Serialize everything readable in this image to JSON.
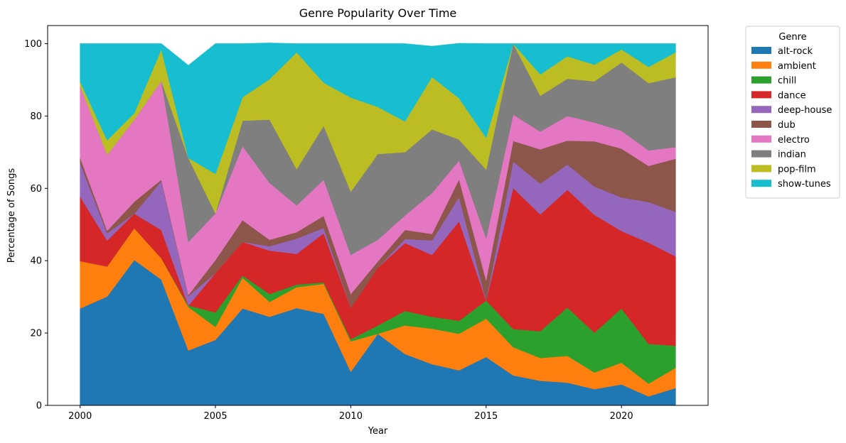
{
  "chart_data": {
    "type": "area",
    "stacked": true,
    "title": "Genre Popularity Over Time",
    "xlabel": "Year",
    "ylabel": "Percentage of Songs",
    "xlim": [
      1998.8,
      2023.2
    ],
    "ylim": [
      0,
      105
    ],
    "x_ticks": [
      2000,
      2005,
      2010,
      2015,
      2020
    ],
    "y_ticks": [
      0,
      20,
      40,
      60,
      80,
      100
    ],
    "grid": false,
    "legend": {
      "title": "Genre",
      "position": "outside-top-right"
    },
    "x": [
      2000,
      2001,
      2002,
      2003,
      2004,
      2005,
      2006,
      2007,
      2008,
      2009,
      2010,
      2011,
      2012,
      2013,
      2014,
      2015,
      2016,
      2017,
      2018,
      2019,
      2020,
      2021,
      2022
    ],
    "series": [
      {
        "name": "alt-rock",
        "color": "#1f77b4",
        "values": [
          26.8,
          30.1,
          40.2,
          34.8,
          15.2,
          18.1,
          26.8,
          24.5,
          26.9,
          25.3,
          9.3,
          19.8,
          14.2,
          11.4,
          9.7,
          13.4,
          8.3,
          6.8,
          6.3,
          4.5,
          5.8,
          2.5,
          4.8
        ]
      },
      {
        "name": "ambient",
        "color": "#ff7f0e",
        "values": [
          13.1,
          8.3,
          8.8,
          5.9,
          12.0,
          3.6,
          8.5,
          4.1,
          5.8,
          8.3,
          8.4,
          0.0,
          7.9,
          9.8,
          10.1,
          10.6,
          7.8,
          6.3,
          7.4,
          4.6,
          6.0,
          3.5,
          5.6
        ]
      },
      {
        "name": "chill",
        "color": "#2ca02c",
        "values": [
          0.0,
          0.0,
          0.0,
          0.0,
          0.4,
          4.0,
          0.6,
          2.2,
          0.7,
          0.4,
          0.6,
          2.3,
          4.0,
          3.3,
          3.6,
          5.0,
          5.0,
          7.4,
          13.4,
          11.0,
          15.0,
          11.0,
          6.1
        ]
      },
      {
        "name": "dance",
        "color": "#d62728",
        "values": [
          17.8,
          7.2,
          4.0,
          7.8,
          0.0,
          10.9,
          9.3,
          12.0,
          8.5,
          13.6,
          8.7,
          16.0,
          18.8,
          17.1,
          27.5,
          0.0,
          39.0,
          32.3,
          32.5,
          32.6,
          21.4,
          28.0,
          24.7
        ]
      },
      {
        "name": "deep-house",
        "color": "#9467bd",
        "values": [
          9.3,
          2.0,
          0.0,
          13.5,
          2.6,
          0.0,
          0.0,
          1.2,
          4.2,
          1.5,
          0.0,
          0.0,
          1.1,
          4.0,
          6.7,
          0.0,
          7.3,
          8.5,
          7.0,
          7.8,
          9.3,
          11.2,
          12.3
        ]
      },
      {
        "name": "dub",
        "color": "#8c564b",
        "values": [
          1.5,
          0.7,
          3.3,
          0.4,
          0.3,
          3.6,
          6.0,
          1.8,
          1.8,
          3.3,
          3.8,
          1.7,
          2.5,
          1.8,
          4.9,
          5.6,
          5.7,
          9.5,
          6.6,
          12.5,
          13.5,
          10.0,
          14.7
        ]
      },
      {
        "name": "electro",
        "color": "#e377c2",
        "values": [
          19.8,
          21.0,
          22.7,
          27.3,
          14.7,
          12.9,
          20.5,
          15.7,
          7.4,
          10.0,
          10.8,
          6.0,
          4.0,
          11.3,
          5.2,
          11.6,
          7.3,
          4.9,
          6.8,
          5.2,
          4.9,
          4.3,
          3.2
        ]
      },
      {
        "name": "indian",
        "color": "#7f7f7f",
        "values": [
          0.0,
          0.0,
          0.0,
          0.0,
          23.2,
          0.0,
          7.0,
          17.5,
          10.0,
          14.9,
          17.5,
          23.7,
          17.5,
          17.6,
          5.8,
          19.0,
          19.6,
          9.9,
          10.3,
          11.4,
          18.9,
          18.6,
          19.3
        ]
      },
      {
        "name": "pop-film",
        "color": "#bcbd22",
        "values": [
          1.2,
          4.0,
          1.8,
          8.7,
          0.0,
          10.9,
          6.5,
          11.2,
          32.3,
          11.9,
          26.0,
          13.0,
          8.5,
          14.5,
          11.4,
          8.8,
          0.0,
          5.9,
          6.2,
          4.6,
          3.6,
          4.5,
          6.9
        ]
      },
      {
        "name": "show-tunes",
        "color": "#17becf",
        "values": [
          10.5,
          26.7,
          19.2,
          1.6,
          25.6,
          36.0,
          14.8,
          10.0,
          2.4,
          10.8,
          14.9,
          17.5,
          21.5,
          8.5,
          15.2,
          26.0,
          0.0,
          8.5,
          3.5,
          5.8,
          1.6,
          6.4,
          2.4
        ]
      }
    ]
  }
}
